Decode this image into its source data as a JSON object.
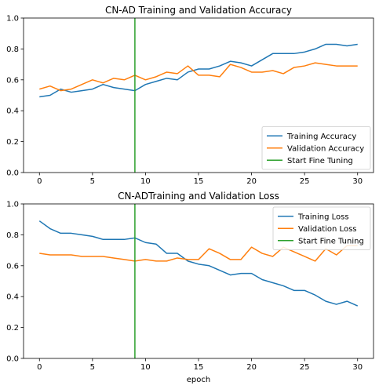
{
  "chart_data": [
    {
      "type": "line",
      "title": "CN-AD Training and Validation Accuracy",
      "xlabel": "",
      "ylabel": "",
      "xlim": [
        -1.5,
        31.5
      ],
      "ylim": [
        0,
        1
      ],
      "xticks": [
        0,
        5,
        10,
        15,
        20,
        25,
        30
      ],
      "yticks": [
        0.0,
        0.2,
        0.4,
        0.6,
        0.8,
        1.0
      ],
      "legend_position": "lower-right",
      "grid": false,
      "x": [
        0,
        1,
        2,
        3,
        4,
        5,
        6,
        7,
        8,
        9,
        10,
        11,
        12,
        13,
        14,
        15,
        16,
        17,
        18,
        19,
        20,
        21,
        22,
        23,
        24,
        25,
        26,
        27,
        28,
        29,
        30
      ],
      "series": [
        {
          "name": "Training Accuracy",
          "color": "#1f77b4",
          "values": [
            0.49,
            0.5,
            0.54,
            0.52,
            0.53,
            0.54,
            0.57,
            0.55,
            0.54,
            0.53,
            0.57,
            0.59,
            0.61,
            0.6,
            0.65,
            0.67,
            0.67,
            0.69,
            0.72,
            0.71,
            0.69,
            0.73,
            0.77,
            0.77,
            0.77,
            0.78,
            0.8,
            0.83,
            0.83,
            0.82,
            0.83
          ]
        },
        {
          "name": "Validation Accuracy",
          "color": "#ff7f0e",
          "values": [
            0.54,
            0.56,
            0.53,
            0.54,
            0.57,
            0.6,
            0.58,
            0.61,
            0.6,
            0.63,
            0.6,
            0.62,
            0.65,
            0.64,
            0.69,
            0.63,
            0.63,
            0.62,
            0.7,
            0.68,
            0.65,
            0.65,
            0.66,
            0.64,
            0.68,
            0.69,
            0.71,
            0.7,
            0.69,
            0.69,
            0.69
          ]
        }
      ],
      "vline": {
        "name": "Start Fine Tuning",
        "x": 9,
        "color": "#2ca02c"
      }
    },
    {
      "type": "line",
      "title": "CN-ADTraining and Validation Loss",
      "xlabel": "epoch",
      "ylabel": "",
      "xlim": [
        -1.5,
        31.5
      ],
      "ylim": [
        0,
        1
      ],
      "xticks": [
        0,
        5,
        10,
        15,
        20,
        25,
        30
      ],
      "yticks": [
        0.0,
        0.2,
        0.4,
        0.6,
        0.8,
        1.0
      ],
      "legend_position": "upper-right",
      "grid": false,
      "x": [
        0,
        1,
        2,
        3,
        4,
        5,
        6,
        7,
        8,
        9,
        10,
        11,
        12,
        13,
        14,
        15,
        16,
        17,
        18,
        19,
        20,
        21,
        22,
        23,
        24,
        25,
        26,
        27,
        28,
        29,
        30
      ],
      "series": [
        {
          "name": "Training Loss",
          "color": "#1f77b4",
          "values": [
            0.89,
            0.84,
            0.81,
            0.81,
            0.8,
            0.79,
            0.77,
            0.77,
            0.77,
            0.78,
            0.75,
            0.74,
            0.68,
            0.68,
            0.63,
            0.61,
            0.6,
            0.57,
            0.54,
            0.55,
            0.55,
            0.51,
            0.49,
            0.47,
            0.44,
            0.44,
            0.41,
            0.37,
            0.35,
            0.37,
            0.34
          ]
        },
        {
          "name": "Validation Loss",
          "color": "#ff7f0e",
          "values": [
            0.68,
            0.67,
            0.67,
            0.67,
            0.66,
            0.66,
            0.66,
            0.65,
            0.64,
            0.63,
            0.64,
            0.63,
            0.63,
            0.65,
            0.64,
            0.64,
            0.71,
            0.68,
            0.64,
            0.64,
            0.72,
            0.68,
            0.66,
            0.72,
            0.69,
            0.66,
            0.63,
            0.71,
            0.67,
            0.73,
            0.73
          ]
        }
      ],
      "vline": {
        "name": "Start Fine Tuning",
        "x": 9,
        "color": "#2ca02c"
      }
    }
  ]
}
